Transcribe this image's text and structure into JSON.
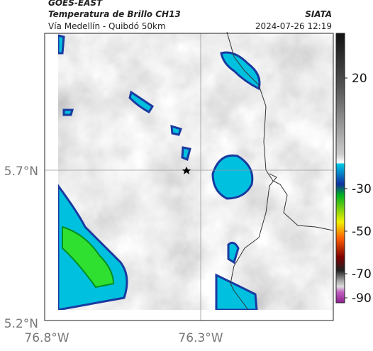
{
  "header": {
    "satellite": "GOES-EAST",
    "product": "Temperatura de Brillo CH13",
    "source": "SIATA",
    "region": "Vía Medellín - Quibdó 50km",
    "timestamp": "2024-07-26 12:19"
  },
  "axes": {
    "lat_labels": [
      "5.7°N",
      "5.2°N"
    ],
    "lon_labels": [
      "76.8°W",
      "76.3°W"
    ]
  },
  "colorbar": {
    "ticks": [
      20,
      -30,
      -50,
      -70,
      -90
    ]
  }
}
